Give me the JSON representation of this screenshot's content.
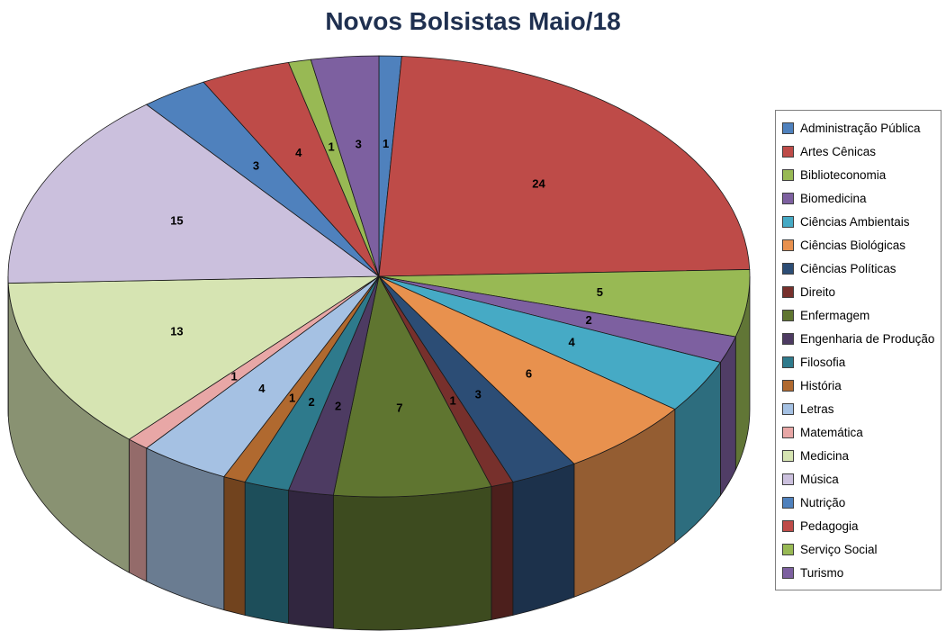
{
  "title": "Novos Bolsistas Maio/18",
  "chart_data": {
    "type": "pie",
    "style": "3d-pie",
    "title": "Novos Bolsistas Maio/18",
    "start_angle_deg": 0,
    "direction": "clockwise",
    "total": 102,
    "legend_position": "right",
    "labels": [
      "Administração Pública",
      "Artes Cênicas",
      "Biblioteconomia",
      "Biomedicina",
      "Ciências Ambientais",
      "Ciências Biológicas",
      "Ciências Políticas",
      "Direito",
      "Enfermagem",
      "Engenharia de Produção",
      "Filosofia",
      "História",
      "Letras",
      "Matemática",
      "Medicina",
      "Música",
      "Nutrição",
      "Pedagogia",
      "Serviço Social",
      "Turismo"
    ],
    "values": [
      1,
      24,
      5,
      2,
      4,
      6,
      3,
      1,
      7,
      2,
      2,
      1,
      4,
      1,
      13,
      15,
      3,
      4,
      1,
      3
    ],
    "colors": [
      "#4F81BD",
      "#BE4B48",
      "#98B954",
      "#7D60A0",
      "#46AAC5",
      "#E8914E",
      "#2C4D75",
      "#77302C",
      "#5F7530",
      "#4D3B62",
      "#2E7A8C",
      "#B0692F",
      "#A5C1E3",
      "#E8A7A6",
      "#D6E4B2",
      "#CBC0DD",
      "#4F81BD",
      "#BE4B48",
      "#98B954",
      "#7D60A0"
    ]
  }
}
